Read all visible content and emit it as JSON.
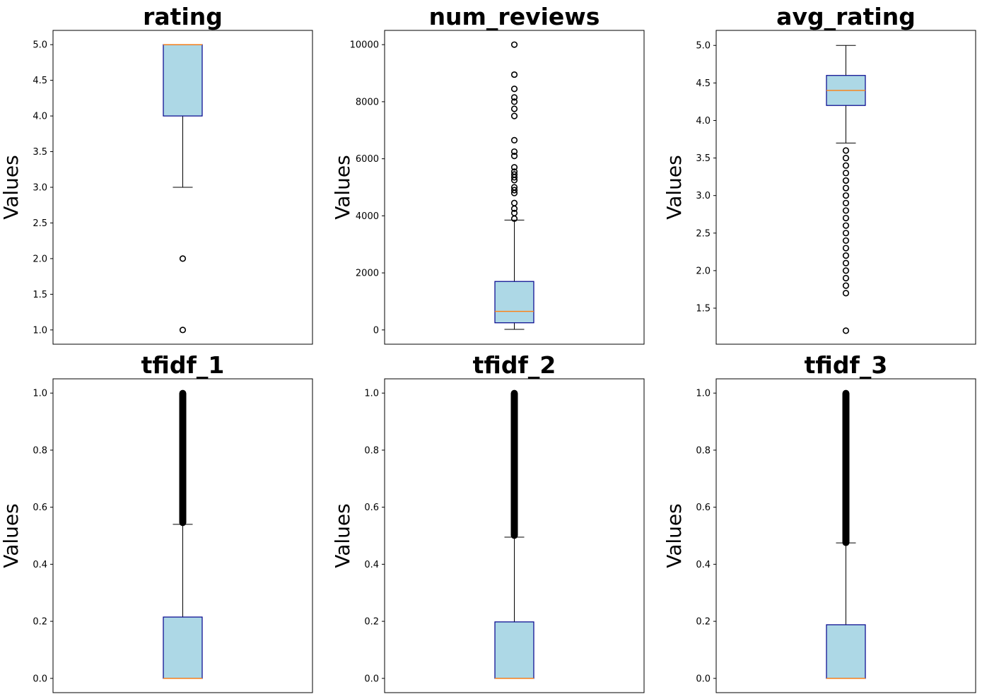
{
  "colors": {
    "box_fill": "#add8e6",
    "box_edge": "#00008b",
    "median": "#ff7f0e",
    "whisker": "#000000",
    "outlier_edge": "#000000"
  },
  "chart_data": [
    {
      "type": "box",
      "title": "rating",
      "ylabel": "Values",
      "ylim": [
        0.8,
        5.2
      ],
      "yticks": [
        1.0,
        1.5,
        2.0,
        2.5,
        3.0,
        3.5,
        4.0,
        4.5,
        5.0
      ],
      "ytick_labels": [
        "1.0",
        "1.5",
        "2.0",
        "2.5",
        "3.0",
        "3.5",
        "4.0",
        "4.5",
        "5.0"
      ],
      "whisker_low": 3.0,
      "q1": 4.0,
      "median": 5.0,
      "q3": 5.0,
      "whisker_high": 5.0,
      "outliers": [
        1.0,
        2.0
      ],
      "dense_outliers": null
    },
    {
      "type": "box",
      "title": "num_reviews",
      "ylabel": "Values",
      "ylim": [
        -500,
        10500
      ],
      "yticks": [
        0,
        2000,
        4000,
        6000,
        8000,
        10000
      ],
      "ytick_labels": [
        "0",
        "2000",
        "4000",
        "6000",
        "8000",
        "10000"
      ],
      "whisker_low": 20,
      "q1": 250,
      "median": 650,
      "q3": 1700,
      "whisker_high": 3850,
      "outliers": [
        3900,
        4100,
        4250,
        4450,
        4800,
        4900,
        5000,
        5250,
        5350,
        5450,
        5550,
        5700,
        6100,
        6250,
        6650,
        7500,
        7750,
        8000,
        8150,
        8450,
        8950,
        10000
      ],
      "dense_outliers": null
    },
    {
      "type": "box",
      "title": "avg_rating",
      "ylabel": "Values",
      "ylim": [
        1.02,
        5.2
      ],
      "yticks": [
        1.5,
        2.0,
        2.5,
        3.0,
        3.5,
        4.0,
        4.5,
        5.0
      ],
      "ytick_labels": [
        "1.5",
        "2.0",
        "2.5",
        "3.0",
        "3.5",
        "4.0",
        "4.5",
        "5.0"
      ],
      "whisker_low": 3.7,
      "q1": 4.2,
      "median": 4.4,
      "q3": 4.6,
      "whisker_high": 5.0,
      "outliers": [
        1.2,
        1.7,
        1.8,
        1.9,
        2.0,
        2.1,
        2.2,
        2.3,
        2.4,
        2.5,
        2.6,
        2.7,
        2.8,
        2.9,
        3.0,
        3.1,
        3.2,
        3.3,
        3.4,
        3.5,
        3.6
      ],
      "dense_outliers": null
    },
    {
      "type": "box",
      "title": "tfidf_1",
      "ylabel": "Values",
      "ylim": [
        -0.05,
        1.05
      ],
      "yticks": [
        0.0,
        0.2,
        0.4,
        0.6,
        0.8,
        1.0
      ],
      "ytick_labels": [
        "0.0",
        "0.2",
        "0.4",
        "0.6",
        "0.8",
        "1.0"
      ],
      "whisker_low": 0.0,
      "q1": 0.0,
      "median": 0.0,
      "q3": 0.215,
      "whisker_high": 0.54,
      "outliers": [],
      "dense_outliers": [
        0.545,
        1.0
      ]
    },
    {
      "type": "box",
      "title": "tfidf_2",
      "ylabel": "Values",
      "ylim": [
        -0.05,
        1.05
      ],
      "yticks": [
        0.0,
        0.2,
        0.4,
        0.6,
        0.8,
        1.0
      ],
      "ytick_labels": [
        "0.0",
        "0.2",
        "0.4",
        "0.6",
        "0.8",
        "1.0"
      ],
      "whisker_low": 0.0,
      "q1": 0.0,
      "median": 0.0,
      "q3": 0.198,
      "whisker_high": 0.495,
      "outliers": [],
      "dense_outliers": [
        0.5,
        1.0
      ]
    },
    {
      "type": "box",
      "title": "tfidf_3",
      "ylabel": "Values",
      "ylim": [
        -0.05,
        1.05
      ],
      "yticks": [
        0.0,
        0.2,
        0.4,
        0.6,
        0.8,
        1.0
      ],
      "ytick_labels": [
        "0.0",
        "0.2",
        "0.4",
        "0.6",
        "0.8",
        "1.0"
      ],
      "whisker_low": 0.0,
      "q1": 0.0,
      "median": 0.0,
      "q3": 0.188,
      "whisker_high": 0.475,
      "outliers": [],
      "dense_outliers": [
        0.475,
        1.0
      ]
    }
  ]
}
